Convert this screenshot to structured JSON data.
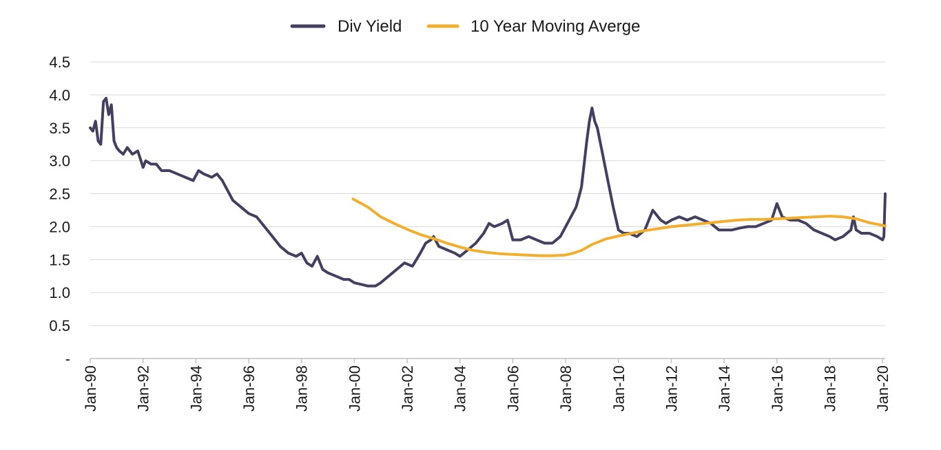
{
  "chart_data": {
    "type": "line",
    "title": "",
    "xlabel": "",
    "ylabel": "",
    "xlim": [
      1990.0,
      2020.1
    ],
    "ylim": [
      0,
      4.5
    ],
    "grid": "horizontal",
    "legend_position": "top-center",
    "y_ticks": [
      {
        "value": 0,
        "label": "-"
      },
      {
        "value": 0.5,
        "label": "0.5"
      },
      {
        "value": 1.0,
        "label": "1.0"
      },
      {
        "value": 1.5,
        "label": "1.5"
      },
      {
        "value": 2.0,
        "label": "2.0"
      },
      {
        "value": 2.5,
        "label": "2.5"
      },
      {
        "value": 3.0,
        "label": "3.0"
      },
      {
        "value": 3.5,
        "label": "3.5"
      },
      {
        "value": 4.0,
        "label": "4.0"
      },
      {
        "value": 4.5,
        "label": "4.5"
      }
    ],
    "x_ticks": [
      {
        "value": 1990,
        "label": "Jan-90"
      },
      {
        "value": 1992,
        "label": "Jan-92"
      },
      {
        "value": 1994,
        "label": "Jan-94"
      },
      {
        "value": 1996,
        "label": "Jan-96"
      },
      {
        "value": 1998,
        "label": "Jan-98"
      },
      {
        "value": 2000,
        "label": "Jan-00"
      },
      {
        "value": 2002,
        "label": "Jan-02"
      },
      {
        "value": 2004,
        "label": "Jan-04"
      },
      {
        "value": 2006,
        "label": "Jan-06"
      },
      {
        "value": 2008,
        "label": "Jan-08"
      },
      {
        "value": 2010,
        "label": "Jan-10"
      },
      {
        "value": 2012,
        "label": "Jan-12"
      },
      {
        "value": 2014,
        "label": "Jan-14"
      },
      {
        "value": 2016,
        "label": "Jan-16"
      },
      {
        "value": 2018,
        "label": "Jan-18"
      },
      {
        "value": 2020,
        "label": "Jan-20"
      }
    ],
    "series": [
      {
        "name": "Div Yield",
        "color": "#443f5e",
        "x": [
          1990.0,
          1990.1,
          1990.2,
          1990.3,
          1990.4,
          1990.5,
          1990.6,
          1990.7,
          1990.8,
          1990.9,
          1991.0,
          1991.1,
          1991.25,
          1991.4,
          1991.6,
          1991.8,
          1992.0,
          1992.1,
          1992.3,
          1992.5,
          1992.7,
          1993.0,
          1993.3,
          1993.6,
          1993.9,
          1994.1,
          1994.3,
          1994.6,
          1994.8,
          1995.0,
          1995.2,
          1995.4,
          1995.7,
          1996.0,
          1996.3,
          1996.6,
          1996.9,
          1997.2,
          1997.5,
          1997.8,
          1998.0,
          1998.2,
          1998.4,
          1998.6,
          1998.8,
          1999.0,
          1999.3,
          1999.6,
          1999.8,
          2000.0,
          2000.3,
          2000.5,
          2000.8,
          2001.0,
          2001.3,
          2001.6,
          2001.9,
          2002.2,
          2002.5,
          2002.7,
          2002.9,
          2003.0,
          2003.2,
          2003.5,
          2003.8,
          2004.0,
          2004.3,
          2004.6,
          2004.9,
          2005.1,
          2005.3,
          2005.6,
          2005.8,
          2006.0,
          2006.3,
          2006.6,
          2006.9,
          2007.2,
          2007.5,
          2007.8,
          2008.0,
          2008.2,
          2008.4,
          2008.6,
          2008.8,
          2008.9,
          2009.0,
          2009.1,
          2009.2,
          2009.4,
          2009.6,
          2009.8,
          2010.0,
          2010.2,
          2010.4,
          2010.7,
          2011.0,
          2011.3,
          2011.6,
          2011.8,
          2012.0,
          2012.3,
          2012.6,
          2012.9,
          2013.2,
          2013.5,
          2013.8,
          2014.0,
          2014.3,
          2014.6,
          2014.9,
          2015.2,
          2015.5,
          2015.8,
          2016.0,
          2016.2,
          2016.5,
          2016.8,
          2017.1,
          2017.4,
          2017.7,
          2018.0,
          2018.2,
          2018.5,
          2018.8,
          2018.9,
          2019.0,
          2019.2,
          2019.5,
          2019.8,
          2020.0,
          2020.05,
          2020.1
        ],
        "y": [
          3.5,
          3.45,
          3.6,
          3.3,
          3.25,
          3.9,
          3.95,
          3.7,
          3.85,
          3.3,
          3.2,
          3.15,
          3.1,
          3.2,
          3.1,
          3.15,
          2.9,
          3.0,
          2.95,
          2.95,
          2.85,
          2.85,
          2.8,
          2.75,
          2.7,
          2.85,
          2.8,
          2.75,
          2.8,
          2.7,
          2.55,
          2.4,
          2.3,
          2.2,
          2.15,
          2.0,
          1.85,
          1.7,
          1.6,
          1.55,
          1.6,
          1.45,
          1.4,
          1.55,
          1.35,
          1.3,
          1.25,
          1.2,
          1.2,
          1.15,
          1.12,
          1.1,
          1.1,
          1.15,
          1.25,
          1.35,
          1.45,
          1.4,
          1.6,
          1.75,
          1.8,
          1.85,
          1.7,
          1.65,
          1.6,
          1.55,
          1.65,
          1.75,
          1.9,
          2.05,
          2.0,
          2.05,
          2.1,
          1.8,
          1.8,
          1.85,
          1.8,
          1.75,
          1.75,
          1.85,
          2.0,
          2.15,
          2.3,
          2.6,
          3.3,
          3.6,
          3.8,
          3.6,
          3.5,
          3.1,
          2.7,
          2.3,
          1.95,
          1.9,
          1.9,
          1.85,
          1.95,
          2.25,
          2.1,
          2.05,
          2.1,
          2.15,
          2.1,
          2.15,
          2.1,
          2.05,
          1.95,
          1.95,
          1.95,
          1.98,
          2.0,
          2.0,
          2.05,
          2.1,
          2.35,
          2.15,
          2.1,
          2.1,
          2.05,
          1.95,
          1.9,
          1.85,
          1.8,
          1.85,
          1.95,
          2.15,
          1.95,
          1.9,
          1.9,
          1.85,
          1.8,
          1.85,
          2.5
        ]
      },
      {
        "name": "10 Year Moving Averge",
        "color": "#f2ae2d",
        "x": [
          1999.95,
          2000.5,
          2001.0,
          2001.5,
          2002.0,
          2002.5,
          2003.0,
          2003.5,
          2004.0,
          2004.5,
          2005.0,
          2005.5,
          2006.0,
          2006.5,
          2007.0,
          2007.5,
          2008.0,
          2008.3,
          2008.6,
          2009.0,
          2009.5,
          2010.0,
          2010.5,
          2011.0,
          2011.5,
          2012.0,
          2012.5,
          2013.0,
          2013.5,
          2014.0,
          2014.5,
          2015.0,
          2015.5,
          2016.0,
          2016.5,
          2017.0,
          2017.5,
          2018.0,
          2018.5,
          2019.0,
          2019.5,
          2020.0,
          2020.1
        ],
        "y": [
          2.42,
          2.3,
          2.15,
          2.05,
          1.96,
          1.88,
          1.82,
          1.75,
          1.69,
          1.64,
          1.61,
          1.59,
          1.58,
          1.57,
          1.56,
          1.56,
          1.57,
          1.6,
          1.64,
          1.73,
          1.81,
          1.86,
          1.9,
          1.94,
          1.97,
          2.0,
          2.02,
          2.04,
          2.06,
          2.08,
          2.1,
          2.11,
          2.11,
          2.12,
          2.13,
          2.14,
          2.15,
          2.16,
          2.15,
          2.12,
          2.06,
          2.02,
          2.01
        ]
      }
    ]
  }
}
